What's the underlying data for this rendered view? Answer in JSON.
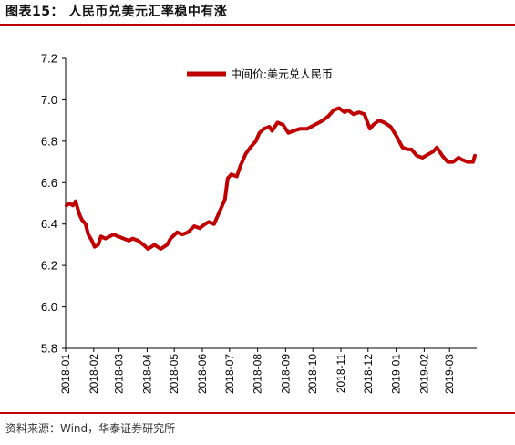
{
  "figure": {
    "title": "图表15：  人民币兑美元汇率稳中有涨",
    "source": "资料来源：Wind，华泰证券研究所"
  },
  "colors": {
    "line": "#c00000",
    "rule": "#c00000"
  },
  "chart_data": {
    "type": "line",
    "title": "",
    "xlabel": "",
    "ylabel": "",
    "ylim": [
      5.8,
      7.2
    ],
    "yticks": [
      "7.2",
      "7.0",
      "6.8",
      "6.6",
      "6.4",
      "6.2",
      "6.0",
      "5.8"
    ],
    "xticks": [
      "2018-01",
      "2018-02",
      "2018-03",
      "2018-04",
      "2018-05",
      "2018-06",
      "2018-07",
      "2018-08",
      "2018-09",
      "2018-10",
      "2018-11",
      "2018-12",
      "2019-01",
      "2019-02",
      "2019-03"
    ],
    "x_range": [
      "2018-01-01",
      "2019-03-31"
    ],
    "grid": false,
    "legend_position": "top-center",
    "series": [
      {
        "name": "中间价:美元兑人民币",
        "x": [
          "2018-01-02",
          "2018-01-05",
          "2018-01-09",
          "2018-01-12",
          "2018-01-16",
          "2018-01-19",
          "2018-01-23",
          "2018-01-26",
          "2018-01-30",
          "2018-02-02",
          "2018-02-06",
          "2018-02-09",
          "2018-02-14",
          "2018-02-23",
          "2018-02-28",
          "2018-03-06",
          "2018-03-12",
          "2018-03-16",
          "2018-03-22",
          "2018-03-28",
          "2018-04-02",
          "2018-04-09",
          "2018-04-16",
          "2018-04-23",
          "2018-04-27",
          "2018-05-04",
          "2018-05-10",
          "2018-05-16",
          "2018-05-23",
          "2018-05-29",
          "2018-06-04",
          "2018-06-08",
          "2018-06-14",
          "2018-06-20",
          "2018-06-26",
          "2018-06-29",
          "2018-07-03",
          "2018-07-09",
          "2018-07-13",
          "2018-07-19",
          "2018-07-24",
          "2018-07-30",
          "2018-08-03",
          "2018-08-08",
          "2018-08-14",
          "2018-08-17",
          "2018-08-23",
          "2018-08-29",
          "2018-09-04",
          "2018-09-10",
          "2018-09-17",
          "2018-09-25",
          "2018-10-08",
          "2018-10-12",
          "2018-10-18",
          "2018-10-24",
          "2018-10-30",
          "2018-11-05",
          "2018-11-09",
          "2018-11-15",
          "2018-11-21",
          "2018-11-27",
          "2018-12-03",
          "2018-12-07",
          "2018-12-13",
          "2018-12-19",
          "2018-12-26",
          "2019-01-02",
          "2019-01-08",
          "2019-01-14",
          "2019-01-18",
          "2019-01-24",
          "2019-01-30",
          "2019-02-11",
          "2019-02-15",
          "2019-02-21",
          "2019-02-27",
          "2019-03-05",
          "2019-03-11",
          "2019-03-15",
          "2019-03-21",
          "2019-03-27",
          "2019-03-29"
        ],
        "values": [
          6.49,
          6.5,
          6.49,
          6.51,
          6.45,
          6.42,
          6.4,
          6.35,
          6.32,
          6.29,
          6.3,
          6.34,
          6.33,
          6.35,
          6.34,
          6.33,
          6.32,
          6.33,
          6.32,
          6.3,
          6.28,
          6.3,
          6.28,
          6.3,
          6.33,
          6.36,
          6.35,
          6.36,
          6.39,
          6.38,
          6.4,
          6.41,
          6.4,
          6.46,
          6.52,
          6.62,
          6.64,
          6.63,
          6.68,
          6.74,
          6.77,
          6.8,
          6.84,
          6.86,
          6.87,
          6.85,
          6.89,
          6.88,
          6.84,
          6.85,
          6.86,
          6.86,
          6.89,
          6.9,
          6.92,
          6.95,
          6.96,
          6.94,
          6.95,
          6.93,
          6.94,
          6.93,
          6.86,
          6.88,
          6.9,
          6.89,
          6.87,
          6.82,
          6.77,
          6.76,
          6.76,
          6.73,
          6.72,
          6.75,
          6.77,
          6.73,
          6.7,
          6.7,
          6.72,
          6.71,
          6.7,
          6.7,
          6.73
        ]
      }
    ]
  }
}
